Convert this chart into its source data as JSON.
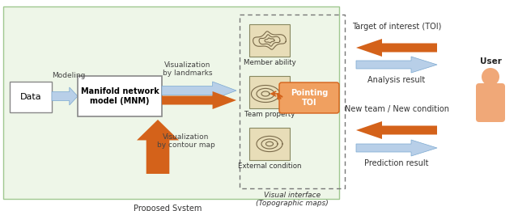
{
  "green_bg": "#eef6e8",
  "green_border": "#a0c890",
  "box_color": "#ffffff",
  "orange_arrow": "#d4621a",
  "blue_arrow": "#b8cfe8",
  "blue_arrow_edge": "#7aa8d0",
  "orange_fill": "#f0a878",
  "tan_map": "#e8ddb8",
  "map_line": "#7a6a4a",
  "orange_callout": "#f0a060",
  "orange_callout_edge": "#d4621a",
  "proposed_system_label": "Proposed System",
  "data_label": "Data",
  "mnm_label": "Manifold network\nmodel (MNM)",
  "modeling_label": "Modeling",
  "vis_landmarks_label": "Visualization\nby landmarks",
  "vis_contour_label": "Visualization\nby contour map",
  "member_ability_label": "Member ability",
  "team_property_label": "Team property",
  "external_condition_label": "External condition",
  "visual_interface_label": "Visual interface\n(Topographic maps)",
  "pointing_toi_label": "Pointing\nTOI",
  "toi_label": "Target of interest (TOI)",
  "analysis_label": "Analysis result",
  "new_team_label": "New team / New condition",
  "prediction_label": "Prediction result",
  "user_label": "User"
}
